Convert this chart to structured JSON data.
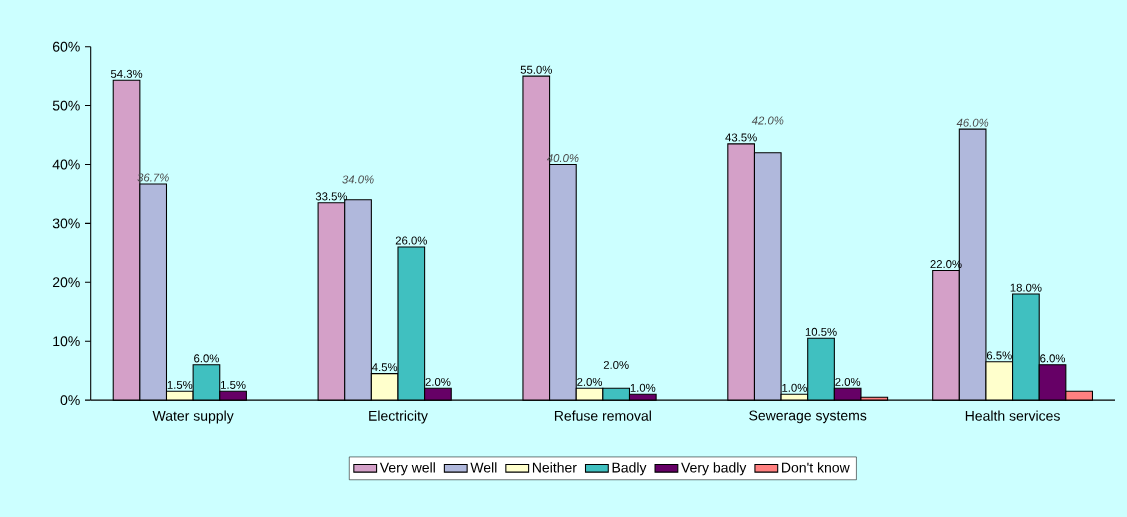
{
  "chart_data": {
    "type": "bar",
    "categories": [
      "Water supply",
      "Electricity",
      "Refuse removal",
      "Sewerage systems",
      "Health services"
    ],
    "series": [
      {
        "name": "Very well",
        "color": "#d4a0c8",
        "values": [
          54.3,
          33.5,
          55.0,
          43.5,
          22.0
        ],
        "value_labels": [
          "54.3%",
          "33.5%",
          "55.0%",
          "43.5%",
          "22.0%"
        ]
      },
      {
        "name": "Well",
        "color": "#b0b8dc",
        "values": [
          36.7,
          34.0,
          40.0,
          42.0,
          46.0
        ],
        "value_labels": [
          "36.7%",
          "34.0%",
          "40.0%",
          "42.0%",
          "46.0%"
        ]
      },
      {
        "name": "Neither",
        "color": "#ffffcc",
        "values": [
          1.5,
          4.5,
          2.0,
          1.0,
          6.5
        ],
        "value_labels": [
          "1.5%",
          "4.5%",
          "2.0%",
          "1.0%",
          "6.5%"
        ]
      },
      {
        "name": "Badly",
        "color": "#40c0c0",
        "values": [
          6.0,
          26.0,
          2.0,
          10.5,
          18.0
        ],
        "value_labels": [
          "6.0%",
          "26.0%",
          "2.0%",
          "10.5%",
          "18.0%"
        ]
      },
      {
        "name": "Very badly",
        "color": "#660066",
        "values": [
          1.5,
          2.0,
          1.0,
          2.0,
          6.0
        ],
        "value_labels": [
          "1.5%",
          "2.0%",
          "1.0%",
          "2.0%",
          "6.0%"
        ]
      },
      {
        "name": "Don't know",
        "color": "#ff8080",
        "values": [
          null,
          null,
          null,
          0.5,
          1.5
        ],
        "value_labels": [
          null,
          null,
          null,
          null,
          null
        ]
      }
    ],
    "ylim": [
      0,
      60
    ],
    "yticks": [
      {
        "value": 0,
        "label": "0%"
      },
      {
        "value": 10,
        "label": "10%"
      },
      {
        "value": 20,
        "label": "20%"
      },
      {
        "value": 30,
        "label": "30%"
      },
      {
        "value": 40,
        "label": "40%"
      },
      {
        "value": 50,
        "label": "50%"
      },
      {
        "value": 60,
        "label": "60%"
      }
    ],
    "grid": false,
    "legend": "bottom"
  }
}
